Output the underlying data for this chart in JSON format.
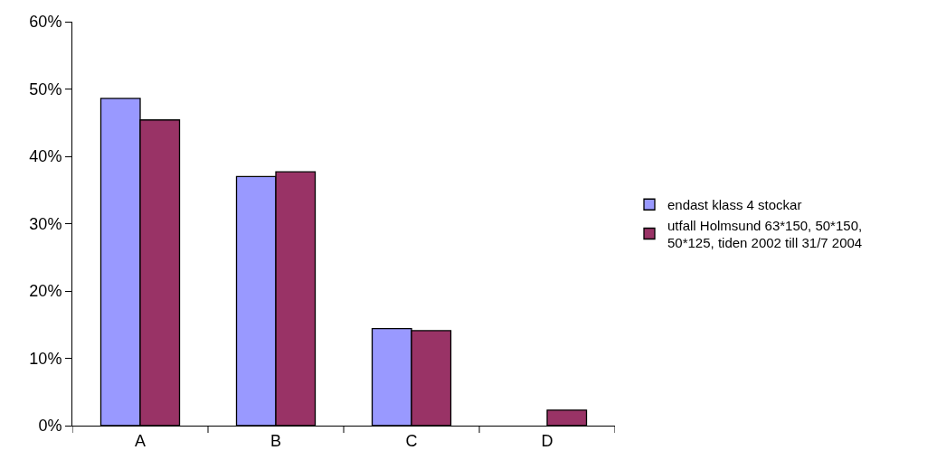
{
  "chart_data": {
    "type": "bar",
    "categories": [
      "A",
      "B",
      "C",
      "D"
    ],
    "series": [
      {
        "name": "endast klass 4 stockar",
        "color": "#9999ff",
        "values": [
          48.6,
          37.0,
          14.4,
          null
        ]
      },
      {
        "name": "utfall Holmsund 63*150, 50*150, 50*125, tiden 2002 till 31/7 2004",
        "color": "#993366",
        "values": [
          45.4,
          37.7,
          14.1,
          2.3
        ]
      }
    ],
    "ylim": [
      0,
      60
    ],
    "yticks": [
      {
        "value": 0,
        "label": "0%"
      },
      {
        "value": 10,
        "label": "10%"
      },
      {
        "value": 20,
        "label": "20%"
      },
      {
        "value": 30,
        "label": "30%"
      },
      {
        "value": 40,
        "label": "40%"
      },
      {
        "value": 50,
        "label": "50%"
      },
      {
        "value": 60,
        "label": "60%"
      }
    ],
    "grid": false,
    "legend": "right"
  }
}
